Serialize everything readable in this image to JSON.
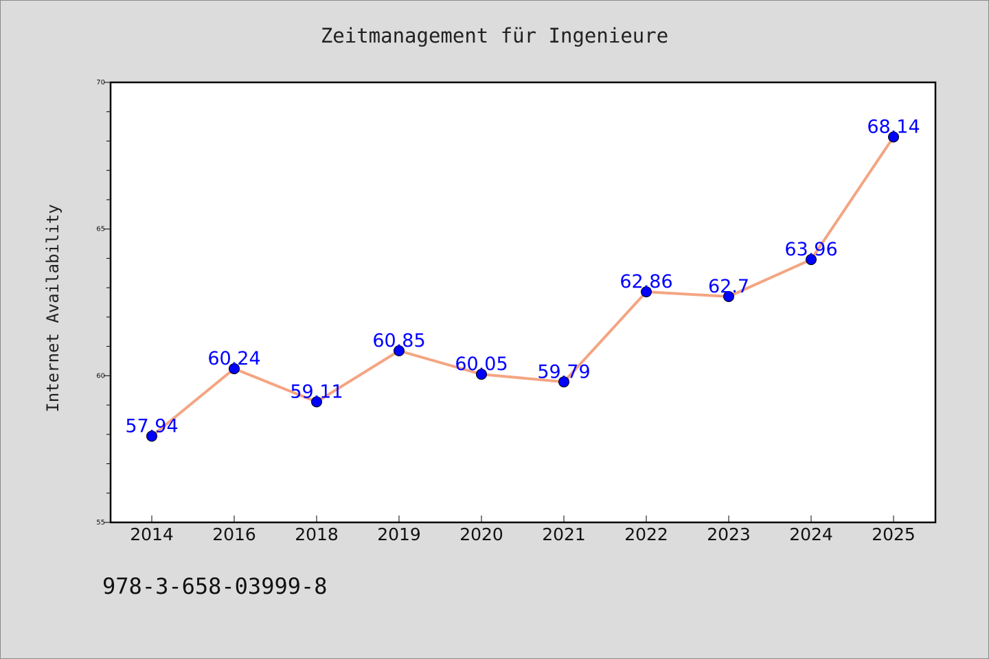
{
  "chart_data": {
    "type": "line",
    "title": "Zeitmanagement für Ingenieure",
    "xlabel": "",
    "ylabel": "Internet Availability",
    "categories": [
      "2014",
      "2016",
      "2018",
      "2019",
      "2020",
      "2021",
      "2022",
      "2023",
      "2024",
      "2025"
    ],
    "series": [
      {
        "values": [
          57.94,
          60.24,
          59.11,
          60.85,
          60.05,
          59.79,
          62.86,
          62.7,
          63.96,
          68.14
        ],
        "data_labels": [
          "57.94",
          "60.24",
          "59.11",
          "60.85",
          "60.05",
          "59.79",
          "62.86",
          "62.7",
          "63.96",
          "68.14"
        ]
      }
    ],
    "ylim": [
      55,
      70
    ],
    "yticks": [
      "55",
      "60",
      "65",
      "70"
    ],
    "grid": false,
    "legend": "none",
    "colors": {
      "line": "#f4a582",
      "marker": "#0000ff",
      "data_label": "#0000ff",
      "background": "#dcdcdc",
      "plot_background": "#ffffff"
    }
  },
  "footer": {
    "isbn": "978-3-658-03999-8"
  }
}
